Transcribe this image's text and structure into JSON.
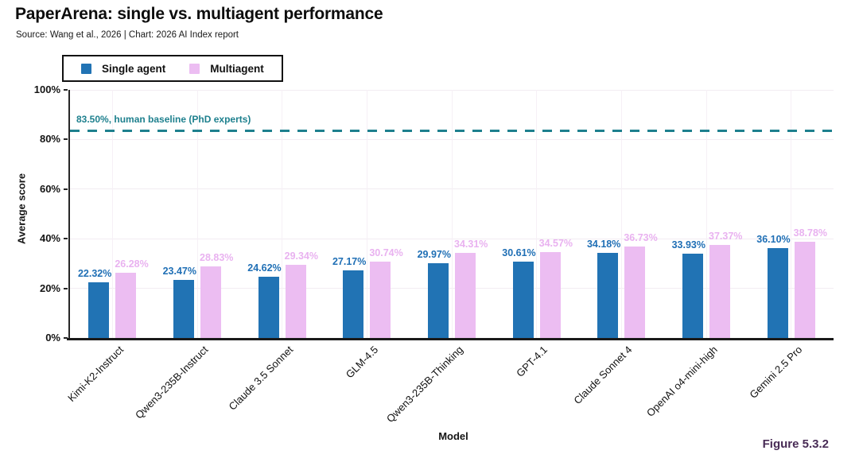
{
  "header": {
    "title": "PaperArena: single vs. multiagent performance",
    "subtitle": "Source: Wang et al., 2026 | Chart: 2026 AI Index report"
  },
  "figure_label": "Figure 5.3.2",
  "legend": {
    "items": [
      {
        "label": "Single agent",
        "color": "#2173b4"
      },
      {
        "label": "Multiagent",
        "color": "#ecbdf2"
      }
    ]
  },
  "colors": {
    "single_bar": "#2173b4",
    "multi_bar": "#ecbdf2",
    "single_value_label": "#1f6fb5",
    "multi_value_label": "#e9b2f0",
    "baseline": "#1e808e",
    "axis": "#1a1a1a",
    "figure_label": "#482b55"
  },
  "chart_data": {
    "type": "bar",
    "title": "PaperArena: single vs. multiagent performance",
    "categories": [
      "Kimi-K2-Instruct",
      "Qwen3-235B-Instruct",
      "Claude 3.5 Sonnet",
      "GLM-4.5",
      "Qwen3-235B-Thinking",
      "GPT-4.1",
      "Claude Sonnet 4",
      "OpenAI o4-mini-high",
      "Gemini 2.5 Pro"
    ],
    "series": [
      {
        "name": "Single agent",
        "values": [
          22.32,
          23.47,
          24.62,
          27.17,
          29.97,
          30.61,
          34.18,
          33.93,
          36.1
        ]
      },
      {
        "name": "Multiagent",
        "values": [
          26.28,
          28.83,
          29.34,
          30.74,
          34.31,
          34.57,
          36.73,
          37.37,
          38.78
        ]
      }
    ],
    "value_label_suffix": "%",
    "xlabel": "Model",
    "ylabel": "Average score",
    "ylim": [
      0,
      100
    ],
    "yticks": [
      0,
      20,
      40,
      60,
      80,
      100
    ],
    "ytick_suffix": "%",
    "grid": true,
    "legend_position": "top-left",
    "baseline": {
      "value": 83.5,
      "label": "83.50%, human baseline (PhD experts)"
    }
  }
}
